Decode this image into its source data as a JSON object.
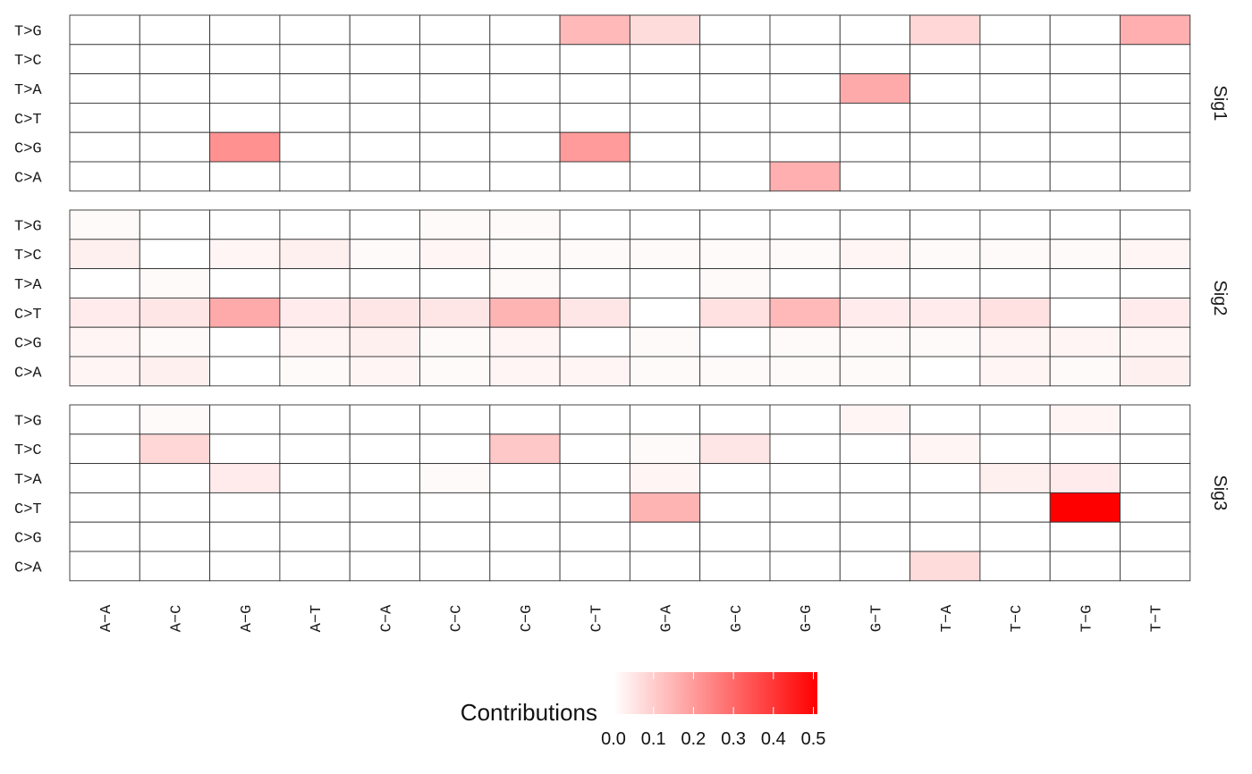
{
  "chart_data": {
    "type": "heatmap",
    "x_categories": [
      "A-A",
      "A-C",
      "A-G",
      "A-T",
      "C-A",
      "C-C",
      "C-G",
      "C-T",
      "G-A",
      "G-C",
      "G-G",
      "G-T",
      "T-A",
      "T-C",
      "T-G",
      "T-T"
    ],
    "x_tick_labels": [
      "A−A",
      "A−C",
      "A−G",
      "A−T",
      "C−A",
      "C−C",
      "C−G",
      "C−T",
      "G−A",
      "G−C",
      "G−G",
      "G−T",
      "T−A",
      "T−C",
      "T−G",
      "T−T"
    ],
    "y_categories": [
      "T>G",
      "T>C",
      "T>A",
      "C>T",
      "C>G",
      "C>A"
    ],
    "color_scale": {
      "low": "#ffffff",
      "high": "#ff0000",
      "min": 0.0,
      "max": 0.51
    },
    "legend": {
      "title": "Contributions",
      "ticks": [
        0.0,
        0.1,
        0.2,
        0.3,
        0.4,
        0.5
      ],
      "tick_labels": [
        "0.0",
        "0.1",
        "0.2",
        "0.3",
        "0.4",
        "0.5"
      ],
      "placement": "bottom"
    },
    "panels": [
      {
        "name": "Sig1",
        "values": [
          [
            0,
            0,
            0,
            0,
            0,
            0,
            0,
            0.14,
            0.07,
            0,
            0,
            0,
            0.08,
            0,
            0,
            0.16
          ],
          [
            0,
            0,
            0,
            0,
            0,
            0,
            0,
            0,
            0,
            0,
            0,
            0,
            0,
            0,
            0,
            0
          ],
          [
            0,
            0,
            0,
            0,
            0,
            0,
            0,
            0,
            0,
            0,
            0,
            0.17,
            0,
            0,
            0,
            0
          ],
          [
            0,
            0,
            0,
            0,
            0,
            0,
            0,
            0,
            0,
            0,
            0,
            0,
            0,
            0,
            0,
            0
          ],
          [
            0,
            0,
            0.22,
            0,
            0,
            0,
            0,
            0.2,
            0,
            0,
            0,
            0,
            0,
            0,
            0,
            0
          ],
          [
            0,
            0,
            0,
            0,
            0,
            0,
            0,
            0,
            0,
            0,
            0.16,
            0,
            0,
            0,
            0,
            0
          ]
        ]
      },
      {
        "name": "Sig2",
        "values": [
          [
            0.01,
            0,
            0,
            0,
            0,
            0.01,
            0.01,
            0,
            0,
            0,
            0,
            0,
            0,
            0,
            0,
            0
          ],
          [
            0.03,
            0,
            0.02,
            0.03,
            0.01,
            0.02,
            0.01,
            0.01,
            0.01,
            0.01,
            0.01,
            0.02,
            0.01,
            0.01,
            0.01,
            0.02
          ],
          [
            0,
            0.01,
            0,
            0,
            0,
            0,
            0.01,
            0,
            0,
            0.01,
            0,
            0,
            0,
            0,
            0,
            0
          ],
          [
            0.04,
            0.05,
            0.17,
            0.04,
            0.05,
            0.05,
            0.15,
            0.05,
            0,
            0.06,
            0.14,
            0.04,
            0.04,
            0.06,
            0,
            0.04
          ],
          [
            0.02,
            0.01,
            0,
            0.02,
            0.03,
            0.01,
            0.02,
            0,
            0.01,
            0,
            0.01,
            0.01,
            0.01,
            0.02,
            0.02,
            0.02
          ],
          [
            0.02,
            0.03,
            0,
            0.01,
            0.02,
            0.01,
            0.02,
            0.02,
            0.01,
            0.01,
            0.01,
            0.01,
            0,
            0.02,
            0.01,
            0.03
          ]
        ]
      },
      {
        "name": "Sig3",
        "values": [
          [
            0,
            0.01,
            0,
            0,
            0,
            0,
            0,
            0,
            0,
            0,
            0,
            0.02,
            0,
            0,
            0.02,
            0
          ],
          [
            0,
            0.08,
            0,
            0,
            0,
            0,
            0.11,
            0,
            0.01,
            0.05,
            0,
            0,
            0.02,
            0,
            0,
            0
          ],
          [
            0,
            0,
            0.04,
            0,
            0,
            0.01,
            0,
            0,
            0.02,
            0,
            0,
            0,
            0,
            0.03,
            0.04,
            0
          ],
          [
            0,
            0,
            0,
            0,
            0,
            0,
            0,
            0,
            0.15,
            0,
            0,
            0,
            0,
            0,
            0.51,
            0
          ],
          [
            0,
            0,
            0,
            0,
            0,
            0,
            0,
            0,
            0,
            0,
            0,
            0,
            0,
            0,
            0,
            0
          ],
          [
            0,
            0,
            0,
            0,
            0,
            0,
            0,
            0,
            0,
            0,
            0,
            0,
            0.07,
            0,
            0,
            0
          ]
        ]
      }
    ]
  }
}
